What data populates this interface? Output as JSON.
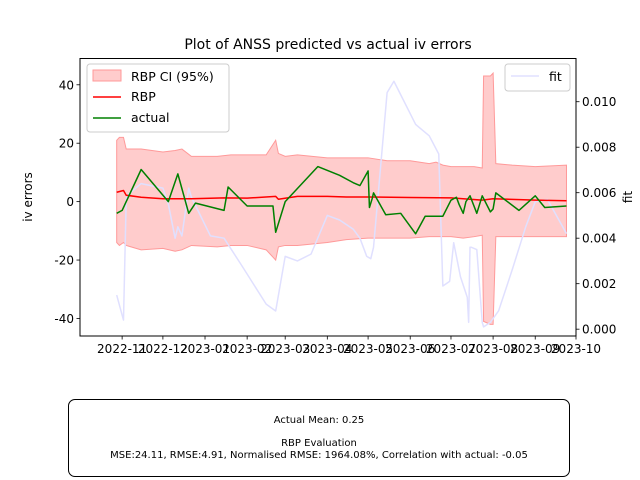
{
  "chart_data": {
    "type": "line",
    "title": "Plot of ANSS predicted vs actual iv errors",
    "ylabel": "iv errors",
    "y2label": "fit",
    "xlim": [
      "2022-10-01",
      "2023-10-01"
    ],
    "ylim": [
      -46,
      49
    ],
    "y2lim": [
      -0.0003,
      0.0119
    ],
    "x_ticks": [
      "2022-11",
      "2022-12",
      "2023-01",
      "2023-02",
      "2023-03",
      "2023-04",
      "2023-05",
      "2023-06",
      "2023-07",
      "2023-08",
      "2023-09",
      "2023-10"
    ],
    "y_ticks": [
      40,
      20,
      0,
      -20,
      -40
    ],
    "y2_ticks": [
      "0.000",
      "0.002",
      "0.004",
      "0.006",
      "0.008",
      "0.010"
    ],
    "legend_left": {
      "placement": "upper-left",
      "entries": [
        "RBP CI (95%)",
        "RBP",
        "actual"
      ]
    },
    "legend_right": {
      "placement": "upper-right",
      "entries": [
        "fit"
      ]
    },
    "colors": {
      "ci": "#ffcccc",
      "ci_edge": "#ff9999",
      "rbp": "#ff0000",
      "actual": "#008000",
      "fit": "#e0e0ff"
    },
    "series": [
      {
        "name": "RBP CI (95%)",
        "kind": "band",
        "x": [
          "2022-10-28",
          "2022-10-30",
          "2022-11-02",
          "2022-11-04",
          "2022-11-15",
          "2022-12-01",
          "2022-12-10",
          "2022-12-15",
          "2022-12-22",
          "2023-01-10",
          "2023-01-20",
          "2023-02-01",
          "2023-02-15",
          "2023-02-22",
          "2023-02-24",
          "2023-03-01",
          "2023-03-10",
          "2023-04-01",
          "2023-04-15",
          "2023-05-01",
          "2023-05-15",
          "2023-06-01",
          "2023-06-15",
          "2023-06-20",
          "2023-06-25",
          "2023-07-01",
          "2023-07-10",
          "2023-07-18",
          "2023-07-24",
          "2023-07-25",
          "2023-07-30",
          "2023-08-01",
          "2023-08-03",
          "2023-08-15",
          "2023-09-01",
          "2023-09-24"
        ],
        "upper": [
          21,
          22,
          22,
          18,
          18,
          17,
          17.5,
          18,
          15.5,
          15.5,
          16,
          16,
          16,
          21,
          16.5,
          15.5,
          16,
          15,
          15,
          15,
          14,
          14,
          13,
          13.5,
          12.5,
          12,
          12,
          12,
          11.5,
          43,
          43,
          44,
          13,
          12.5,
          12,
          12.5
        ],
        "lower": [
          -14,
          -15,
          -14,
          -15,
          -16.5,
          -16,
          -17,
          -16.5,
          -15,
          -15.5,
          -15,
          -15,
          -16.5,
          -20,
          -15.5,
          -15,
          -15,
          -14,
          -13,
          -12.5,
          -12.5,
          -12.5,
          -12,
          -12,
          -12,
          -12,
          -12.5,
          -12,
          -11.5,
          -41,
          -42,
          -42,
          -12,
          -12,
          -12,
          -12
        ]
      },
      {
        "name": "RBP",
        "kind": "line",
        "x": [
          "2022-10-28",
          "2022-11-02",
          "2022-11-04",
          "2022-11-15",
          "2022-12-01",
          "2022-12-22",
          "2023-01-15",
          "2023-02-01",
          "2023-02-22",
          "2023-02-24",
          "2023-03-10",
          "2023-04-01",
          "2023-04-15",
          "2023-05-01",
          "2023-06-01",
          "2023-07-01",
          "2023-07-24",
          "2023-08-01",
          "2023-09-01",
          "2023-09-24"
        ],
        "values": [
          3.2,
          3.8,
          2.2,
          1.5,
          1.0,
          1.0,
          1.3,
          1.2,
          1.8,
          0.8,
          1.8,
          1.8,
          1.6,
          1.6,
          1.4,
          1.3,
          0.5,
          1.0,
          0.5,
          0.3
        ]
      },
      {
        "name": "actual",
        "kind": "line",
        "x": [
          "2022-10-28",
          "2022-11-01",
          "2022-11-03",
          "2022-11-15",
          "2022-12-05",
          "2022-12-12",
          "2022-12-20",
          "2022-12-25",
          "2023-01-15",
          "2023-01-18",
          "2023-02-01",
          "2023-02-20",
          "2023-02-22",
          "2023-03-01",
          "2023-03-25",
          "2023-04-10",
          "2023-04-20",
          "2023-04-25",
          "2023-05-01",
          "2023-05-02",
          "2023-05-04",
          "2023-05-05",
          "2023-05-14",
          "2023-05-25",
          "2023-06-05",
          "2023-06-12",
          "2023-06-25",
          "2023-07-01",
          "2023-07-05",
          "2023-07-07",
          "2023-07-10",
          "2023-07-12",
          "2023-07-15",
          "2023-07-20",
          "2023-07-24",
          "2023-07-30",
          "2023-08-01",
          "2023-08-03",
          "2023-08-20",
          "2023-09-01",
          "2023-09-08",
          "2023-09-24"
        ],
        "values": [
          -4,
          -3,
          -1,
          11,
          0,
          9.5,
          -4,
          -0.5,
          -3,
          5,
          -1.5,
          -1.5,
          -10.5,
          0,
          12,
          9,
          6.5,
          5.5,
          10.5,
          -2,
          1,
          3,
          -4.5,
          -4,
          -11,
          -5,
          -5,
          0.5,
          1.5,
          -1,
          -4,
          0,
          2,
          -4,
          2,
          -3.5,
          -2.5,
          3,
          -3,
          2,
          -2,
          -1.5
        ]
      },
      {
        "name": "fit",
        "kind": "line",
        "axis": "right",
        "x": [
          "2022-10-28",
          "2022-11-02",
          "2022-11-04",
          "2022-11-05",
          "2022-11-15",
          "2022-12-01",
          "2022-12-05",
          "2022-12-10",
          "2022-12-12",
          "2022-12-15",
          "2022-12-20",
          "2022-12-22",
          "2023-01-05",
          "2023-01-15",
          "2023-01-28",
          "2023-02-15",
          "2023-02-22",
          "2023-03-01",
          "2023-03-10",
          "2023-03-20",
          "2023-04-01",
          "2023-04-10",
          "2023-04-20",
          "2023-04-25",
          "2023-04-30",
          "2023-05-03",
          "2023-05-05",
          "2023-05-15",
          "2023-05-20",
          "2023-06-05",
          "2023-06-15",
          "2023-06-22",
          "2023-06-25",
          "2023-06-30",
          "2023-07-03",
          "2023-07-08",
          "2023-07-13",
          "2023-07-14",
          "2023-07-15",
          "2023-07-16",
          "2023-07-20",
          "2023-07-24",
          "2023-07-25",
          "2023-07-30",
          "2023-08-05",
          "2023-08-15",
          "2023-08-25",
          "2023-09-01",
          "2023-09-10",
          "2023-09-24"
        ],
        "values": [
          0.0015,
          0.0004,
          0.0057,
          0.0059,
          0.0064,
          0.0062,
          0.0055,
          0.004,
          0.0045,
          0.0041,
          0.0062,
          0.0058,
          0.0041,
          0.004,
          0.0028,
          0.0011,
          0.0008,
          0.0032,
          0.003,
          0.0033,
          0.005,
          0.0048,
          0.0044,
          0.004,
          0.0032,
          0.0031,
          0.0036,
          0.0104,
          0.0109,
          0.009,
          0.0085,
          0.0077,
          0.0019,
          0.0021,
          0.0038,
          0.0023,
          0.0014,
          0.0003,
          0.0036,
          0.0036,
          0.0035,
          0.0003,
          0.0001,
          0.0003,
          0.0008,
          0.0026,
          0.0045,
          0.0056,
          0.0057,
          0.0042
        ]
      }
    ]
  },
  "stats": {
    "mean_line": "Actual Mean: 0.25",
    "eval_title": "RBP Evaluation",
    "eval_line": "MSE:24.11, RMSE:4.91, Normalised RMSE: 1964.08%, Correlation with actual: -0.05"
  }
}
